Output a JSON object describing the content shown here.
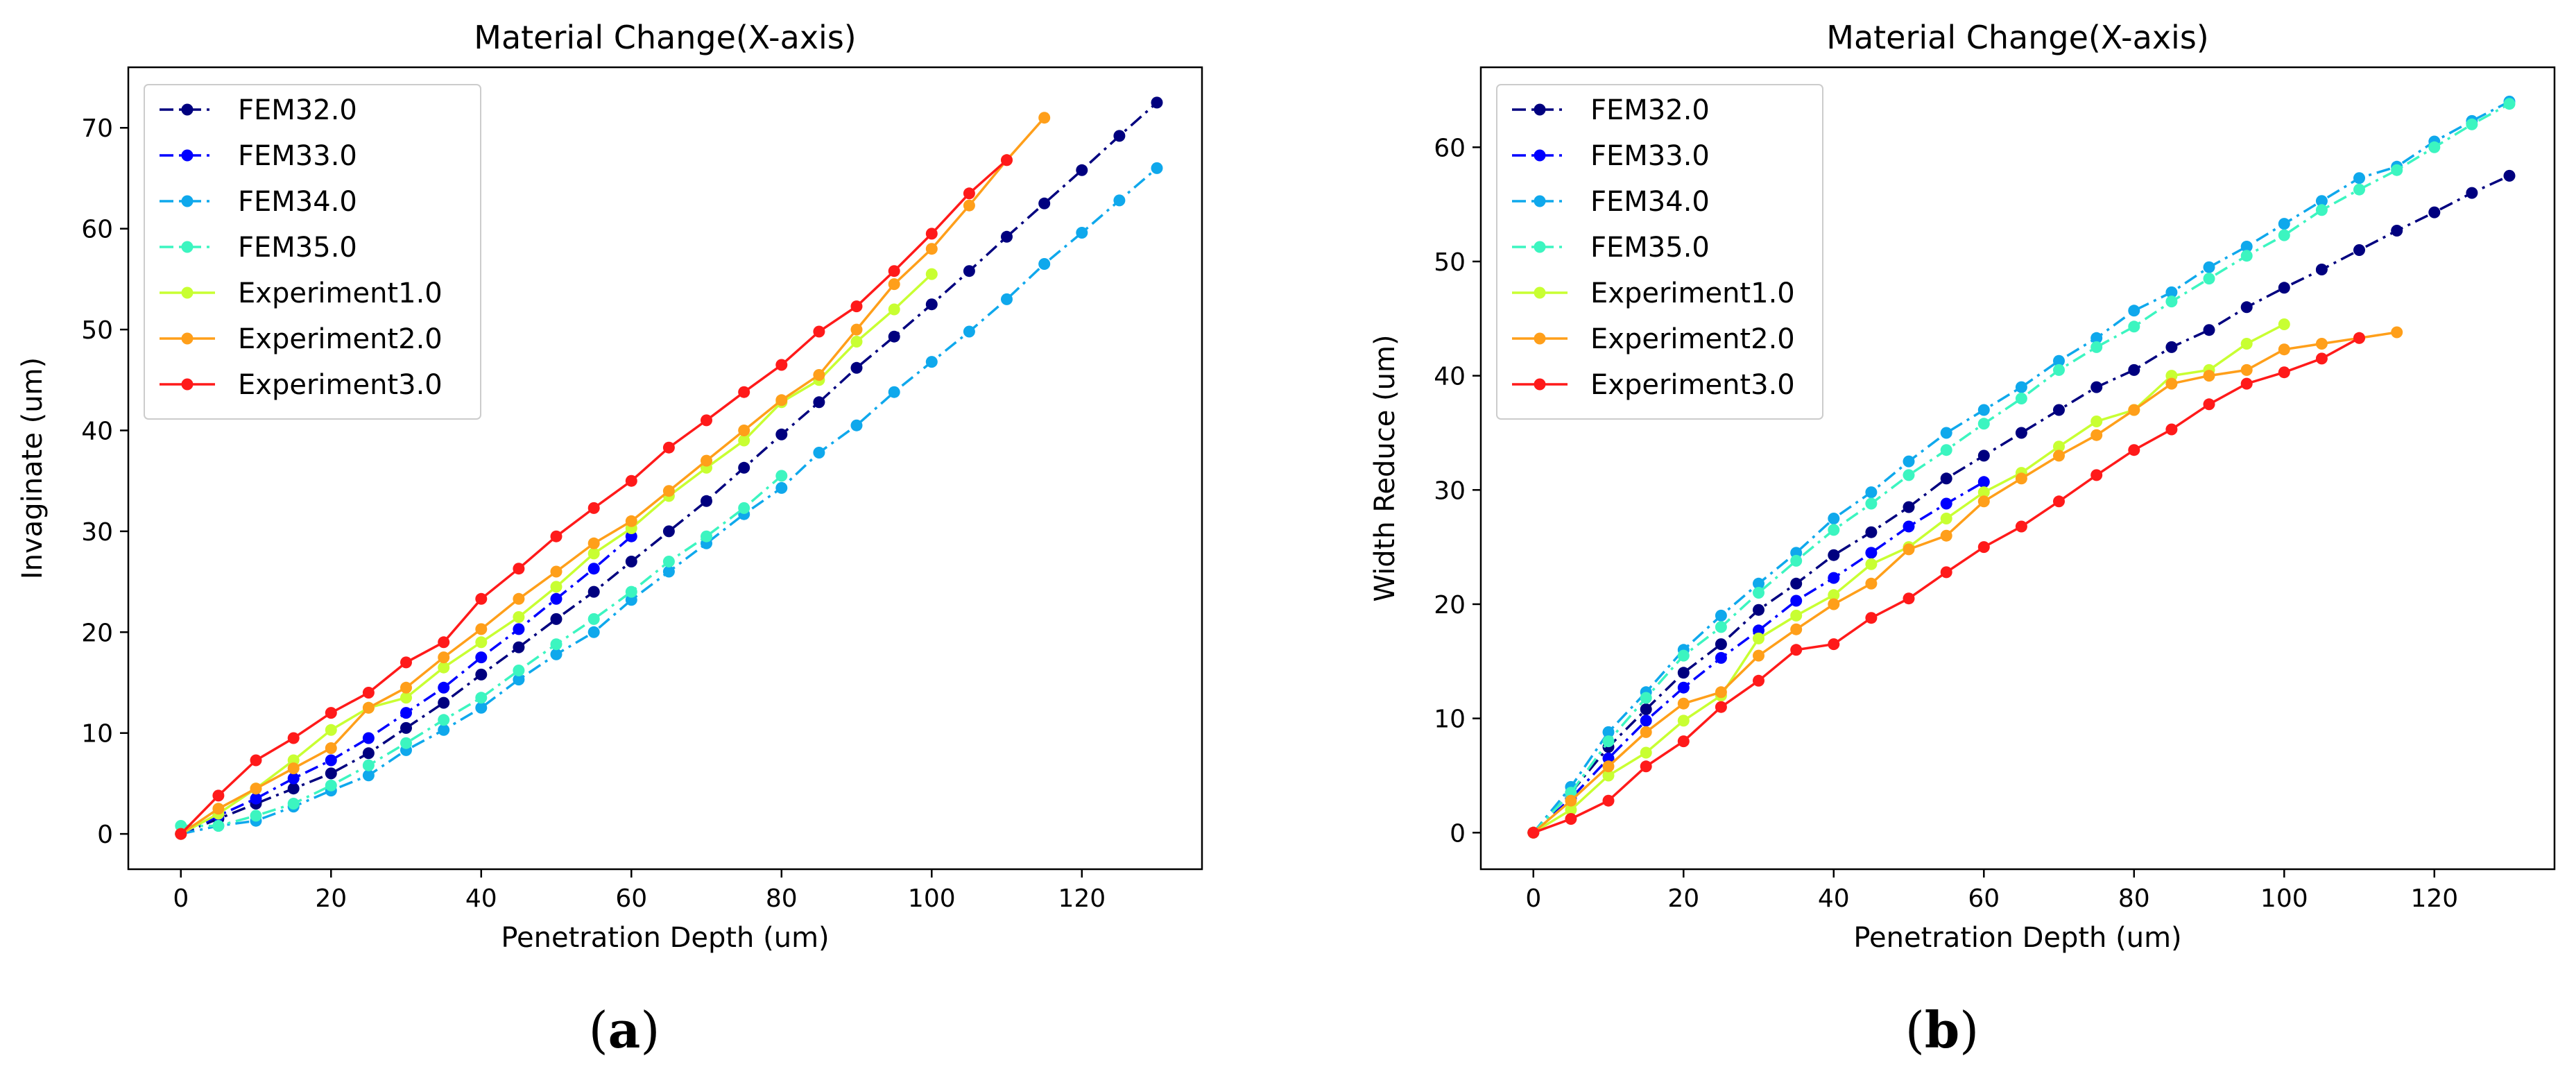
{
  "chart_data": [
    {
      "type": "line",
      "panel_label": "(a)",
      "title": "Material Change(X-axis)",
      "xlabel": "Penetration Depth (um)",
      "ylabel": "Invaginate (um)",
      "xlim": [
        -7,
        136
      ],
      "ylim": [
        -3.5,
        76
      ],
      "xticks": [
        0,
        20,
        40,
        60,
        80,
        100,
        120
      ],
      "yticks": [
        0,
        10,
        20,
        30,
        40,
        50,
        60,
        70
      ],
      "grid": false,
      "legend_position": "top-left",
      "series": [
        {
          "name": "FEM32.0",
          "color": "#00007f",
          "style": "dashdot",
          "x": [
            0,
            5,
            10,
            15,
            20,
            25,
            30,
            35,
            40,
            45,
            50,
            55,
            60,
            65,
            70,
            75,
            80,
            85,
            90,
            95,
            100,
            105,
            110,
            115,
            120,
            125,
            130
          ],
          "y": [
            0,
            1.5,
            3.0,
            4.5,
            6.0,
            8.0,
            10.5,
            13.0,
            15.8,
            18.5,
            21.3,
            24.0,
            27.0,
            30.0,
            33.0,
            36.3,
            39.6,
            42.8,
            46.2,
            49.3,
            52.5,
            55.8,
            59.2,
            62.5,
            65.8,
            69.2,
            72.5
          ]
        },
        {
          "name": "FEM33.0",
          "color": "#0000ff",
          "style": "dashdot",
          "x": [
            0,
            5,
            10,
            15,
            20,
            25,
            30,
            35,
            40,
            45,
            50,
            55,
            60
          ],
          "y": [
            0,
            1.8,
            3.5,
            5.5,
            7.3,
            9.5,
            12.0,
            14.5,
            17.5,
            20.3,
            23.3,
            26.3,
            29.5
          ]
        },
        {
          "name": "FEM34.0",
          "color": "#0fa8ec",
          "style": "dashdot",
          "x": [
            0,
            5,
            10,
            15,
            20,
            25,
            30,
            35,
            40,
            45,
            50,
            55,
            60,
            65,
            70,
            75,
            80,
            85,
            90,
            95,
            100,
            105,
            110,
            115,
            120,
            125,
            130
          ],
          "y": [
            0,
            0.8,
            1.3,
            2.7,
            4.3,
            5.8,
            8.3,
            10.3,
            12.5,
            15.3,
            17.8,
            20.0,
            23.2,
            26.0,
            28.8,
            31.7,
            34.3,
            37.8,
            40.5,
            43.8,
            46.8,
            49.8,
            53.0,
            56.5,
            59.6,
            62.8,
            66.0
          ]
        },
        {
          "name": "FEM35.0",
          "color": "#3cf5c0",
          "style": "dashdot",
          "x": [
            0,
            5,
            10,
            15,
            20,
            25,
            30,
            35,
            40,
            45,
            50,
            55,
            60,
            65,
            70,
            75,
            80
          ],
          "y": [
            0.8,
            0.8,
            1.8,
            3.0,
            4.8,
            6.8,
            9.0,
            11.3,
            13.5,
            16.2,
            18.8,
            21.3,
            24.0,
            27.0,
            29.5,
            32.3,
            35.5
          ]
        },
        {
          "name": "Experiment1.0",
          "color": "#c8ff32",
          "style": "solid",
          "x": [
            0,
            5,
            10,
            15,
            20,
            25,
            30,
            35,
            40,
            45,
            50,
            55,
            60,
            65,
            70,
            75,
            80,
            85,
            90,
            95,
            100
          ],
          "y": [
            0,
            2.0,
            4.5,
            7.3,
            10.3,
            12.5,
            13.5,
            16.5,
            19.0,
            21.5,
            24.5,
            27.8,
            30.3,
            33.5,
            36.3,
            39.0,
            42.8,
            45.0,
            48.8,
            52.0,
            55.5
          ]
        },
        {
          "name": "Experiment2.0",
          "color": "#ff9f1a",
          "style": "solid",
          "x": [
            0,
            5,
            10,
            15,
            20,
            25,
            30,
            35,
            40,
            45,
            50,
            55,
            60,
            65,
            70,
            75,
            80,
            85,
            90,
            95,
            100,
            105,
            110,
            115
          ],
          "y": [
            0,
            2.5,
            4.5,
            6.5,
            8.5,
            12.5,
            14.5,
            17.5,
            20.3,
            23.3,
            26.0,
            28.8,
            31.0,
            34.0,
            37.0,
            40.0,
            43.0,
            45.5,
            50.0,
            54.5,
            58.0,
            62.3,
            66.8,
            71.0
          ]
        },
        {
          "name": "Experiment3.0",
          "color": "#ff1a1a",
          "style": "solid",
          "x": [
            0,
            5,
            10,
            15,
            20,
            25,
            30,
            35,
            40,
            45,
            50,
            55,
            60,
            65,
            70,
            75,
            80,
            85,
            90,
            95,
            100,
            105,
            110
          ],
          "y": [
            0,
            3.8,
            7.3,
            9.5,
            12.0,
            14.0,
            17.0,
            19.0,
            23.3,
            26.3,
            29.5,
            32.3,
            35.0,
            38.3,
            41.0,
            43.8,
            46.5,
            49.8,
            52.3,
            55.8,
            59.5,
            63.5,
            66.8
          ]
        }
      ]
    },
    {
      "type": "line",
      "panel_label": "(b)",
      "title": "Material Change(X-axis)",
      "xlabel": "Penetration Depth (um)",
      "ylabel": "Width Reduce (um)",
      "xlim": [
        -7,
        136
      ],
      "ylim": [
        -3.2,
        67
      ],
      "xticks": [
        0,
        20,
        40,
        60,
        80,
        100,
        120
      ],
      "yticks": [
        0,
        10,
        20,
        30,
        40,
        50,
        60
      ],
      "grid": false,
      "legend_position": "top-left",
      "series": [
        {
          "name": "FEM32.0",
          "color": "#00007f",
          "style": "dashdot",
          "x": [
            0,
            5,
            10,
            15,
            20,
            25,
            30,
            35,
            40,
            45,
            50,
            55,
            60,
            65,
            70,
            75,
            80,
            85,
            90,
            95,
            100,
            105,
            110,
            115,
            120,
            125,
            130
          ],
          "y": [
            0,
            3.5,
            7.5,
            10.8,
            14.0,
            16.5,
            19.5,
            21.8,
            24.3,
            26.3,
            28.5,
            31.0,
            33.0,
            35.0,
            37.0,
            39.0,
            40.5,
            42.5,
            44.0,
            46.0,
            47.7,
            49.3,
            51.0,
            52.7,
            54.3,
            56.0,
            57.5
          ]
        },
        {
          "name": "FEM33.0",
          "color": "#0000ff",
          "style": "dashdot",
          "x": [
            0,
            5,
            10,
            15,
            20,
            25,
            30,
            35,
            40,
            45,
            50,
            55,
            60
          ],
          "y": [
            0,
            3.0,
            6.5,
            9.8,
            12.7,
            15.3,
            17.7,
            20.3,
            22.3,
            24.5,
            26.8,
            28.8,
            30.7
          ]
        },
        {
          "name": "FEM34.0",
          "color": "#0fa8ec",
          "style": "dashdot",
          "x": [
            0,
            5,
            10,
            15,
            20,
            25,
            30,
            35,
            40,
            45,
            50,
            55,
            60,
            65,
            70,
            75,
            80,
            85,
            90,
            95,
            100,
            105,
            110,
            115,
            120,
            125,
            130
          ],
          "y": [
            0,
            4.0,
            8.8,
            12.3,
            16.0,
            19.0,
            21.8,
            24.5,
            27.5,
            29.8,
            32.5,
            35.0,
            37.0,
            39.0,
            41.3,
            43.3,
            45.7,
            47.3,
            49.5,
            51.3,
            53.3,
            55.3,
            57.3,
            58.3,
            60.5,
            62.3,
            64.0
          ]
        },
        {
          "name": "FEM35.0",
          "color": "#3cf5c0",
          "style": "dashdot",
          "x": [
            0,
            5,
            10,
            15,
            20,
            25,
            30,
            35,
            40,
            45,
            50,
            55,
            60,
            65,
            70,
            75,
            80,
            85,
            90,
            95,
            100,
            105,
            110,
            115,
            120,
            125,
            130
          ],
          "y": [
            0,
            3.5,
            8.0,
            11.8,
            15.5,
            18.0,
            21.0,
            23.8,
            26.5,
            28.8,
            31.3,
            33.5,
            35.8,
            38.0,
            40.5,
            42.5,
            44.3,
            46.5,
            48.5,
            50.5,
            52.3,
            54.5,
            56.3,
            58.0,
            60.0,
            62.0,
            63.8
          ]
        },
        {
          "name": "Experiment1.0",
          "color": "#c8ff32",
          "style": "solid",
          "x": [
            0,
            5,
            10,
            15,
            20,
            25,
            30,
            35,
            40,
            45,
            50,
            55,
            60,
            65,
            70,
            75,
            80,
            85,
            90,
            95,
            100
          ],
          "y": [
            0,
            2.0,
            5.0,
            7.0,
            9.8,
            12.0,
            17.0,
            19.0,
            20.8,
            23.5,
            25.0,
            27.5,
            29.8,
            31.5,
            33.8,
            36.0,
            37.0,
            40.0,
            40.5,
            42.8,
            44.5
          ]
        },
        {
          "name": "Experiment2.0",
          "color": "#ff9f1a",
          "style": "solid",
          "x": [
            0,
            5,
            10,
            15,
            20,
            25,
            30,
            35,
            40,
            45,
            50,
            55,
            60,
            65,
            70,
            75,
            80,
            85,
            90,
            95,
            100,
            105,
            110,
            115
          ],
          "y": [
            0,
            2.8,
            5.8,
            8.8,
            11.3,
            12.3,
            15.5,
            17.8,
            20.0,
            21.8,
            24.8,
            26.0,
            29.0,
            31.0,
            33.0,
            34.8,
            37.0,
            39.3,
            40.0,
            40.5,
            42.3,
            42.8,
            43.3,
            43.8
          ]
        },
        {
          "name": "Experiment3.0",
          "color": "#ff1a1a",
          "style": "solid",
          "x": [
            0,
            5,
            10,
            15,
            20,
            25,
            30,
            35,
            40,
            45,
            50,
            55,
            60,
            65,
            70,
            75,
            80,
            85,
            90,
            95,
            100,
            105,
            110
          ],
          "y": [
            0,
            1.2,
            2.8,
            5.8,
            8.0,
            11.0,
            13.3,
            16.0,
            16.5,
            18.8,
            20.5,
            22.8,
            25.0,
            26.8,
            29.0,
            31.3,
            33.5,
            35.3,
            37.5,
            39.3,
            40.3,
            41.5,
            43.3
          ]
        }
      ]
    }
  ]
}
